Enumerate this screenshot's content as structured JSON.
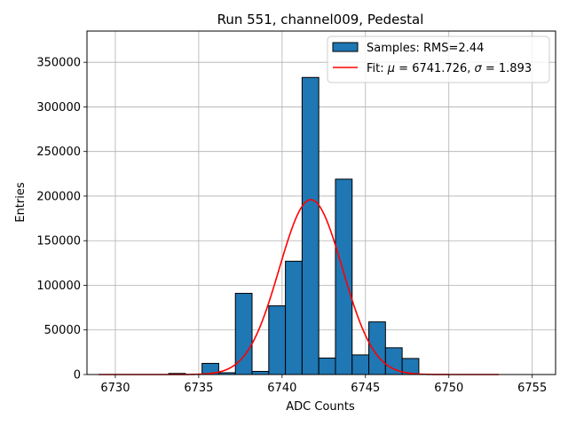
{
  "chart_data": {
    "type": "bar",
    "title": "Run 551, channel009, Pedestal",
    "xlabel": "ADC Counts",
    "ylabel": "Entries",
    "xlim": [
      6728.3,
      6756.4
    ],
    "ylim": [
      0,
      385000
    ],
    "grid": true,
    "xticks": [
      6730,
      6735,
      6740,
      6745,
      6750,
      6755
    ],
    "yticks": [
      0,
      50000,
      100000,
      150000,
      200000,
      250000,
      300000,
      350000
    ],
    "histogram": {
      "name": "Samples: RMS=2.44",
      "color": "#1f77b4",
      "edgecolor": "#000000",
      "bin_width": 1.0,
      "bins": [
        {
          "left": 6733.2,
          "value": 1200
        },
        {
          "left": 6735.2,
          "value": 12500
        },
        {
          "left": 6736.2,
          "value": 2000
        },
        {
          "left": 6737.2,
          "value": 91000
        },
        {
          "left": 6738.2,
          "value": 3500
        },
        {
          "left": 6739.2,
          "value": 77000
        },
        {
          "left": 6740.2,
          "value": 127000
        },
        {
          "left": 6741.2,
          "value": 333000
        },
        {
          "left": 6742.2,
          "value": 18500
        },
        {
          "left": 6743.2,
          "value": 219000
        },
        {
          "left": 6744.2,
          "value": 22000
        },
        {
          "left": 6745.2,
          "value": 59000
        },
        {
          "left": 6746.2,
          "value": 30000
        },
        {
          "left": 6747.2,
          "value": 18000
        }
      ]
    },
    "fit": {
      "name": "Fit: μ = 6741.726, σ = 1.893",
      "label_prefix": "Fit: ",
      "mu_symbol": "μ",
      "sigma_symbol": "σ",
      "mu_text": " = 6741.726, ",
      "sigma_text": " = 1.893",
      "color": "#ff0000",
      "mu": 6741.726,
      "sigma": 1.893,
      "amplitude": 196000,
      "x_range": [
        6729.0,
        6753.0
      ]
    },
    "legend": {
      "location": "top-right",
      "entries": [
        "Samples: RMS=2.44",
        "Fit: μ = 6741.726, σ = 1.893"
      ]
    }
  }
}
